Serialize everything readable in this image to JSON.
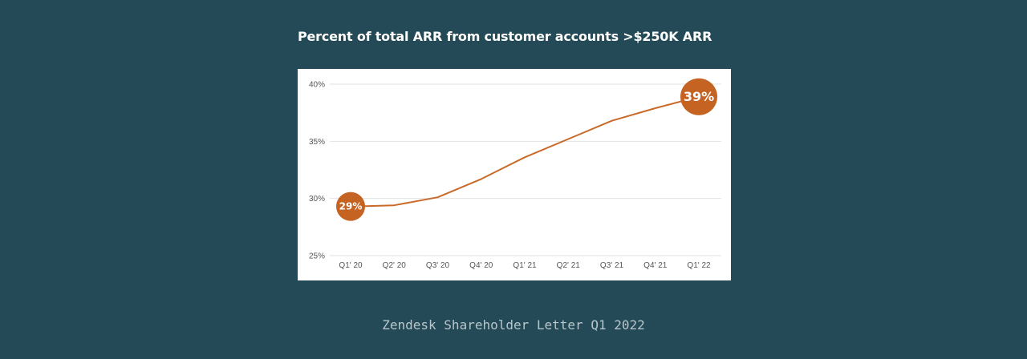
{
  "chart_data": {
    "type": "line",
    "title": "Percent of total ARR from customer accounts >$250K ARR",
    "xlabel": "",
    "ylabel": "",
    "categories": [
      "Q1' 20",
      "Q2' 20",
      "Q3' 20",
      "Q4' 20",
      "Q1' 21",
      "Q2' 21",
      "Q3' 21",
      "Q4' 21",
      "Q1' 22"
    ],
    "series": [
      {
        "values": [
          29.3,
          29.4,
          30.1,
          31.7,
          33.6,
          35.2,
          36.8,
          37.9,
          38.9
        ]
      }
    ],
    "ylim": [
      25,
      40
    ],
    "yticks": [
      25,
      30,
      35,
      40
    ],
    "ytick_labels": [
      "25%",
      "30%",
      "35%",
      "40%"
    ],
    "grid": "horizontal",
    "annotations": [
      {
        "index": 0,
        "label": "29%"
      },
      {
        "index": 8,
        "label": "39%"
      }
    ],
    "colors": {
      "line": "#c96a2a",
      "marker": "#c46322",
      "grid": "#e2e2e2",
      "tick_text": "#555555",
      "marker_text": "#ffffff"
    }
  },
  "caption": "Zendesk Shareholder Letter Q1 2022"
}
